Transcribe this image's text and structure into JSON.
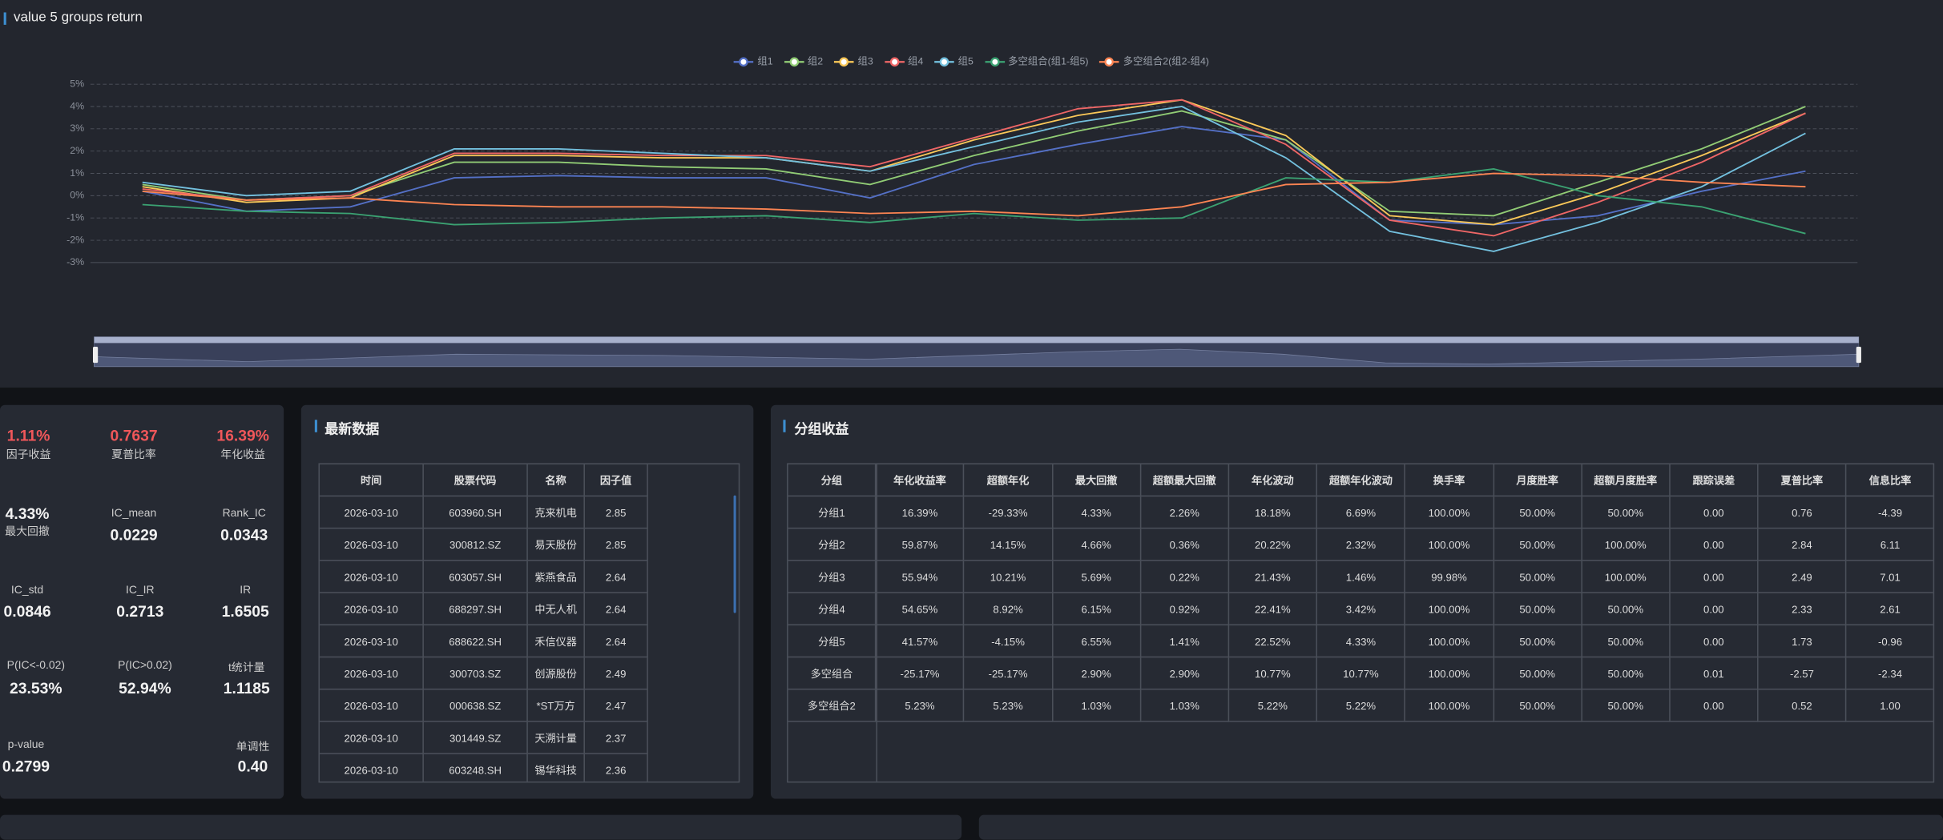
{
  "chart_data": {
    "type": "line",
    "title": "value 5 groups return",
    "categories": [
      null,
      null,
      null,
      null,
      null,
      null,
      null,
      null,
      null,
      null,
      null,
      null,
      null,
      null,
      null,
      null,
      null
    ],
    "series": [
      {
        "name": "组1",
        "color": "#5470c6",
        "values": [
          0.2,
          -0.7,
          -0.5,
          0.8,
          0.9,
          0.8,
          0.8,
          -0.1,
          1.4,
          2.3,
          3.1,
          2.5,
          -1.1,
          -1.3,
          -0.9,
          0.2,
          1.1
        ]
      },
      {
        "name": "组2",
        "color": "#91cc75",
        "values": [
          0.5,
          -0.2,
          0.0,
          1.5,
          1.5,
          1.3,
          1.2,
          0.5,
          1.8,
          2.9,
          3.8,
          2.5,
          -0.7,
          -0.9,
          0.6,
          2.1,
          4.0
        ]
      },
      {
        "name": "组3",
        "color": "#fac858",
        "values": [
          0.4,
          -0.3,
          -0.1,
          1.8,
          1.8,
          1.7,
          1.7,
          1.1,
          2.5,
          3.6,
          4.3,
          2.7,
          -0.9,
          -1.3,
          0.1,
          1.8,
          3.7
        ]
      },
      {
        "name": "组4",
        "color": "#ee6666",
        "values": [
          0.3,
          -0.2,
          0.0,
          1.9,
          1.9,
          1.8,
          1.8,
          1.3,
          2.6,
          3.9,
          4.3,
          2.3,
          -1.1,
          -1.8,
          -0.3,
          1.5,
          3.7
        ]
      },
      {
        "name": "组5",
        "color": "#73c0de",
        "values": [
          0.6,
          0.0,
          0.2,
          2.1,
          2.1,
          1.9,
          1.7,
          1.1,
          2.2,
          3.3,
          4.0,
          1.7,
          -1.6,
          -2.5,
          -1.2,
          0.4,
          2.8
        ]
      },
      {
        "name": "多空组合(组1-组5)",
        "color": "#3ba272",
        "values": [
          -0.4,
          -0.7,
          -0.8,
          -1.3,
          -1.2,
          -1.0,
          -0.9,
          -1.2,
          -0.8,
          -1.1,
          -1.0,
          0.8,
          0.6,
          1.2,
          0.0,
          -0.5,
          -1.7
        ]
      },
      {
        "name": "多空组合2(组2-组4)",
        "color": "#fc8452",
        "values": [
          0.2,
          -0.2,
          -0.1,
          -0.4,
          -0.5,
          -0.5,
          -0.6,
          -0.8,
          -0.7,
          -0.9,
          -0.5,
          0.5,
          0.6,
          1.0,
          0.9,
          0.6,
          0.4
        ]
      }
    ],
    "ylim": [
      -3,
      5
    ],
    "yticks": [
      {
        "value": -3,
        "label": "-3%"
      },
      {
        "value": -2,
        "label": "-2%"
      },
      {
        "value": -1,
        "label": "-1%"
      },
      {
        "value": 0,
        "label": "0%"
      },
      {
        "value": 1,
        "label": "1%"
      },
      {
        "value": 2,
        "label": "2%"
      },
      {
        "value": 3,
        "label": "3%"
      },
      {
        "value": 4,
        "label": "4%"
      },
      {
        "value": 5,
        "label": "5%"
      }
    ],
    "grid": true
  },
  "metrics": [
    {
      "label": "因子收益",
      "value": "1.11%"
    },
    {
      "label": "夏普比率",
      "value": "0.7637"
    },
    {
      "label": "年化收益",
      "value": "16.39%"
    },
    {
      "label": "最大回撤",
      "value": "4.33%"
    },
    {
      "label": "IC_mean",
      "value": "0.0229"
    },
    {
      "label": "Rank_IC",
      "value": "0.0343"
    },
    {
      "label": "IC_std",
      "value": "0.0846"
    },
    {
      "label": "IC_IR",
      "value": "0.2713"
    },
    {
      "label": "IR",
      "value": "1.6505"
    },
    {
      "label": "P(IC<-0.02)",
      "value": "23.53%"
    },
    {
      "label": "P(IC>0.02)",
      "value": "52.94%"
    },
    {
      "label": "t统计量",
      "value": "1.1185"
    },
    {
      "label": "p-value",
      "value": "0.2799"
    },
    {
      "label": "单调性",
      "value": "0.40"
    }
  ],
  "latest": {
    "title": "最新数据",
    "headers": [
      "时间",
      "股票代码",
      "名称",
      "因子值"
    ],
    "rows": [
      [
        "2026-03-10",
        "603960.SH",
        "克来机电",
        "2.85"
      ],
      [
        "2026-03-10",
        "300812.SZ",
        "易天股份",
        "2.85"
      ],
      [
        "2026-03-10",
        "603057.SH",
        "紫燕食品",
        "2.64"
      ],
      [
        "2026-03-10",
        "688297.SH",
        "中无人机",
        "2.64"
      ],
      [
        "2026-03-10",
        "688622.SH",
        "禾信仪器",
        "2.64"
      ],
      [
        "2026-03-10",
        "300703.SZ",
        "创源股份",
        "2.49"
      ],
      [
        "2026-03-10",
        "000638.SZ",
        "*ST万方",
        "2.47"
      ],
      [
        "2026-03-10",
        "301449.SZ",
        "天溯计量",
        "2.37"
      ],
      [
        "2026-03-10",
        "603248.SH",
        "锡华科技",
        "2.36"
      ]
    ]
  },
  "groups": {
    "title": "分组收益",
    "headers": [
      "分组",
      "年化收益率",
      "超额年化",
      "最大回撤",
      "超额最大回撤",
      "年化波动",
      "超额年化波动",
      "换手率",
      "月度胜率",
      "超额月度胜率",
      "跟踪误差",
      "夏普比率",
      "信息比率"
    ],
    "rows": [
      [
        "分组1",
        "16.39%",
        "-29.33%",
        "4.33%",
        "2.26%",
        "18.18%",
        "6.69%",
        "100.00%",
        "50.00%",
        "50.00%",
        "0.00",
        "0.76",
        "-4.39"
      ],
      [
        "分组2",
        "59.87%",
        "14.15%",
        "4.66%",
        "0.36%",
        "20.22%",
        "2.32%",
        "100.00%",
        "50.00%",
        "100.00%",
        "0.00",
        "2.84",
        "6.11"
      ],
      [
        "分组3",
        "55.94%",
        "10.21%",
        "5.69%",
        "0.22%",
        "21.43%",
        "1.46%",
        "99.98%",
        "50.00%",
        "100.00%",
        "0.00",
        "2.49",
        "7.01"
      ],
      [
        "分组4",
        "54.65%",
        "8.92%",
        "6.15%",
        "0.92%",
        "22.41%",
        "3.42%",
        "100.00%",
        "50.00%",
        "50.00%",
        "0.00",
        "2.33",
        "2.61"
      ],
      [
        "分组5",
        "41.57%",
        "-4.15%",
        "6.55%",
        "1.41%",
        "22.52%",
        "4.33%",
        "100.00%",
        "50.00%",
        "50.00%",
        "0.00",
        "1.73",
        "-0.96"
      ],
      [
        "多空组合",
        "-25.17%",
        "-25.17%",
        "2.90%",
        "2.90%",
        "10.77%",
        "10.77%",
        "100.00%",
        "50.00%",
        "50.00%",
        "0.01",
        "-2.57",
        "-2.34"
      ],
      [
        "多空组合2",
        "5.23%",
        "5.23%",
        "1.03%",
        "1.03%",
        "5.22%",
        "5.22%",
        "100.00%",
        "50.00%",
        "50.00%",
        "0.00",
        "0.52",
        "1.00"
      ]
    ]
  }
}
